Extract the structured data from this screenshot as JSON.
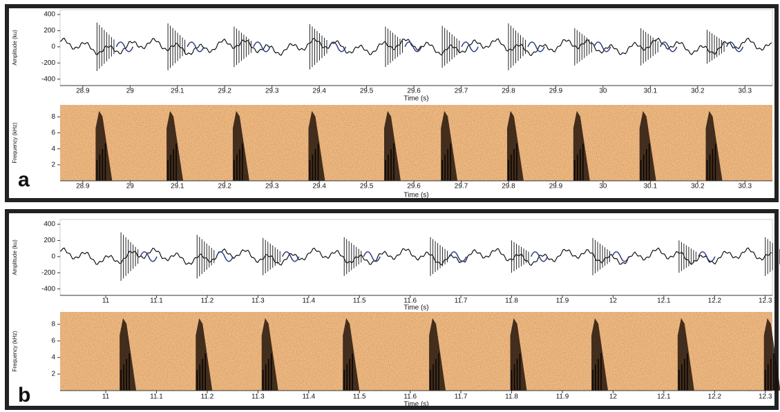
{
  "panels": [
    {
      "label": "a",
      "charts": [
        {
          "type": "waveform",
          "y_label": "Amplitude (ku)",
          "x_label": "Time (s)",
          "xlim": [
            28.852,
            30.358
          ],
          "xticks": [
            28.9,
            29,
            29.1,
            29.2,
            29.3,
            29.4,
            29.5,
            29.6,
            29.7,
            29.8,
            29.9,
            30,
            30.1,
            30.2,
            30.3
          ],
          "ylim": [
            -480,
            460
          ],
          "yticks": [
            400,
            200,
            0,
            -200,
            -400
          ],
          "x": [
            28.93,
            29.08,
            29.22,
            29.38,
            29.54,
            29.66,
            29.8,
            29.94,
            30.08,
            30.22
          ],
          "values": [
            300,
            290,
            250,
            280,
            250,
            260,
            290,
            230,
            230,
            210
          ],
          "color": "#222222"
        },
        {
          "type": "spectrogram",
          "y_label": "Frequency (kHz)",
          "x_label": "Time (s)",
          "xlim": [
            28.852,
            30.358
          ],
          "xticks": [
            28.9,
            29,
            29.1,
            29.2,
            29.3,
            29.4,
            29.5,
            29.6,
            29.7,
            29.8,
            29.9,
            30,
            30.1,
            30.2,
            30.3
          ],
          "ylim": [
            0,
            9.5
          ],
          "yticks": [
            2,
            4,
            6,
            8
          ],
          "x": [
            28.93,
            29.08,
            29.22,
            29.38,
            29.54,
            29.66,
            29.8,
            29.94,
            30.08,
            30.22
          ]
        }
      ]
    },
    {
      "label": "b",
      "charts": [
        {
          "type": "waveform",
          "y_label": "Amplitude (ku)",
          "x_label": "Time (s)",
          "xlim": [
            10.91,
            12.314
          ],
          "xticks": [
            11,
            11.1,
            11.2,
            11.3,
            11.4,
            11.5,
            11.6,
            11.7,
            11.8,
            11.9,
            12,
            12.1,
            12.2,
            12.3
          ],
          "ylim": [
            -480,
            460
          ],
          "yticks": [
            400,
            200,
            0,
            -200,
            -400
          ],
          "x": [
            11.03,
            11.18,
            11.31,
            11.47,
            11.64,
            11.8,
            11.96,
            12.13,
            12.3
          ],
          "values": [
            300,
            270,
            230,
            240,
            240,
            200,
            230,
            200,
            240
          ],
          "color": "#222222"
        },
        {
          "type": "spectrogram",
          "y_label": "Frequency (kHz)",
          "x_label": "Time (s)",
          "xlim": [
            10.91,
            12.314
          ],
          "xticks": [
            11,
            11.1,
            11.2,
            11.3,
            11.4,
            11.5,
            11.6,
            11.7,
            11.8,
            11.9,
            12,
            12.1,
            12.2,
            12.3
          ],
          "ylim": [
            0,
            9.5
          ],
          "yticks": [
            2,
            4,
            6,
            8
          ],
          "x": [
            11.03,
            11.18,
            11.31,
            11.47,
            11.64,
            11.8,
            11.96,
            12.13,
            12.3
          ]
        }
      ]
    }
  ]
}
